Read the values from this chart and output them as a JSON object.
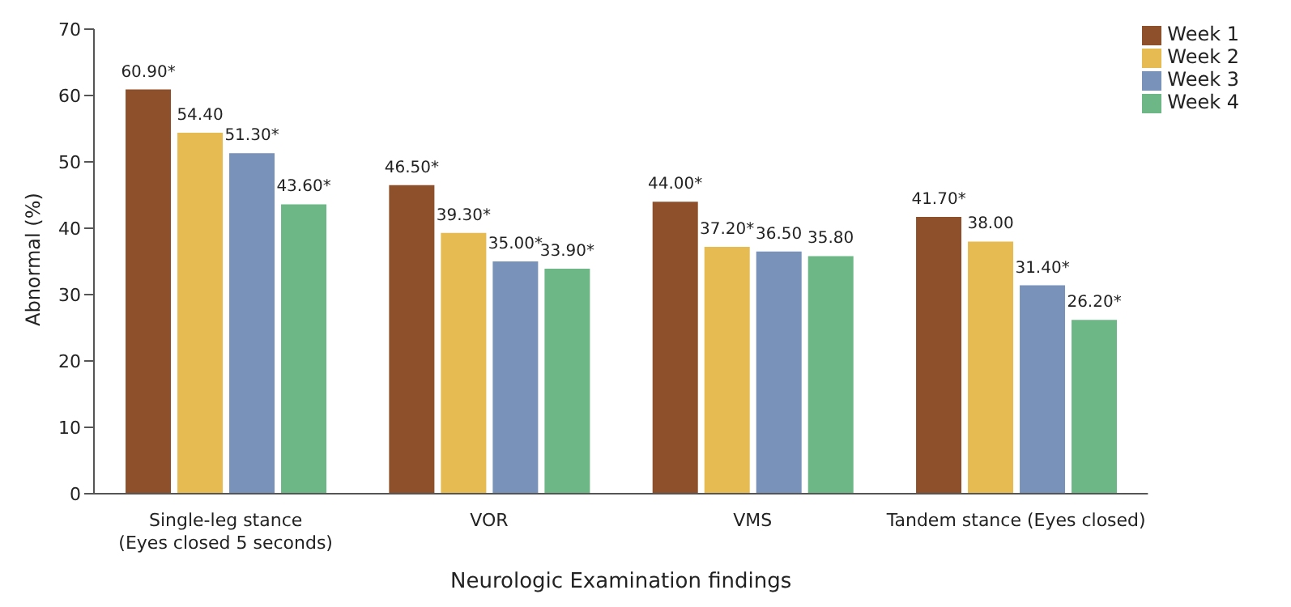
{
  "chart_data": {
    "type": "bar",
    "xlabel": "Neurologic Examination findings",
    "ylabel": "Abnormal (%)",
    "categories": [
      "Single-leg stance\n(Eyes closed 5 seconds)",
      "VOR",
      "VMS",
      "Tandem stance (Eyes closed)"
    ],
    "series": [
      {
        "name": "Week 1",
        "color": "#8e502b",
        "values": [
          60.9,
          46.5,
          44.0,
          41.7
        ],
        "value_labels": [
          "60.90*",
          "46.50*",
          "44.00*",
          "41.70*"
        ]
      },
      {
        "name": "Week 2",
        "color": "#e5bb52",
        "values": [
          54.4,
          39.3,
          37.2,
          38.0
        ],
        "value_labels": [
          "54.40",
          "39.30*",
          "37.20*",
          "38.00"
        ]
      },
      {
        "name": "Week 3",
        "color": "#7892ba",
        "values": [
          51.3,
          35.0,
          36.5,
          31.4
        ],
        "value_labels": [
          "51.30*",
          "35.00*",
          "36.50",
          "31.40*"
        ]
      },
      {
        "name": "Week 4",
        "color": "#6db786",
        "values": [
          43.6,
          33.9,
          35.8,
          26.2
        ],
        "value_labels": [
          "43.60*",
          "33.90*",
          "35.80",
          "26.20*"
        ]
      }
    ],
    "ylim": [
      0,
      70
    ],
    "yticks": [
      0,
      10,
      20,
      30,
      40,
      50,
      60,
      70
    ],
    "legend": "top right",
    "grid": false
  }
}
